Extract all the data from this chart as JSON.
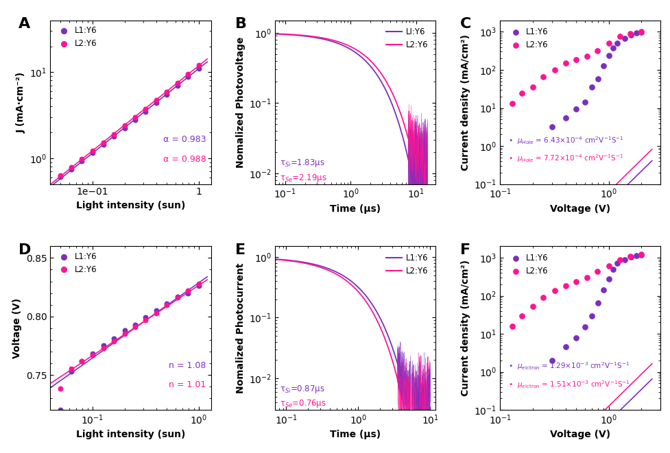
{
  "color_L1": "#7B2FBE",
  "color_L2": "#FF1493",
  "A": {
    "xlabel": "Light intensity (sun)",
    "ylabel": "J (mA·cm⁻²)",
    "alpha_L1": 0.983,
    "alpha_L2": 0.988,
    "x_L1": [
      0.05,
      0.063,
      0.079,
      0.1,
      0.126,
      0.158,
      0.2,
      0.251,
      0.316,
      0.398,
      0.501,
      0.631,
      0.794,
      1.0
    ],
    "y_L1": [
      0.605,
      0.748,
      0.93,
      1.15,
      1.43,
      1.79,
      2.23,
      2.79,
      3.49,
      4.38,
      5.5,
      6.95,
      8.78,
      11.1
    ],
    "x_L2": [
      0.05,
      0.063,
      0.079,
      0.1,
      0.126,
      0.158,
      0.2,
      0.251,
      0.316,
      0.398,
      0.501,
      0.631,
      0.794,
      1.0
    ],
    "y_L2": [
      0.632,
      0.791,
      0.985,
      1.23,
      1.53,
      1.91,
      2.39,
      3.0,
      3.76,
      4.73,
      5.96,
      7.52,
      9.5,
      12.0
    ],
    "xlim": [
      0.04,
      1.3
    ],
    "ylim": [
      0.5,
      40
    ]
  },
  "B": {
    "xlabel": "Time (μs)",
    "ylabel": "Nomalized Photovoltage",
    "tau_L1": 1.83,
    "tau_L2": 2.19,
    "xlim": [
      0.07,
      20
    ],
    "ylim": [
      0.007,
      1.5
    ]
  },
  "C": {
    "xlabel": "Voltage (V)",
    "ylabel": "Current density (mA/cm²)",
    "x_L1": [
      0.3,
      0.4,
      0.5,
      0.6,
      0.7,
      0.8,
      0.9,
      1.0,
      1.1,
      1.2,
      1.4,
      1.6,
      1.8,
      2.0
    ],
    "y_L1": [
      3.2,
      5.5,
      9.5,
      14.0,
      35.0,
      58.0,
      130.0,
      240.0,
      380.0,
      500.0,
      680.0,
      820.0,
      920.0,
      970.0
    ],
    "x_L2": [
      0.13,
      0.16,
      0.2,
      0.25,
      0.32,
      0.4,
      0.5,
      0.63,
      0.79,
      1.0,
      1.26,
      1.58,
      2.0
    ],
    "y_L2": [
      13.0,
      24.0,
      36.0,
      65.0,
      100.0,
      150.0,
      185.0,
      225.0,
      320.0,
      510.0,
      760.0,
      910.0,
      1010.0
    ],
    "slope_L1": 2.8,
    "intercept_L1": -1.5,
    "slope_L2": 2.8,
    "intercept_L2": -1.2,
    "xlim": [
      0.1,
      3.0
    ],
    "ylim": [
      0.1,
      2000.0
    ]
  },
  "D": {
    "xlabel": "Light intensity (sun)",
    "ylabel": "Voltage (V)",
    "n_L1": 1.08,
    "n_L2": 1.01,
    "x_L1": [
      0.05,
      0.063,
      0.079,
      0.1,
      0.126,
      0.158,
      0.2,
      0.251,
      0.316,
      0.398,
      0.501,
      0.631,
      0.794,
      1.0
    ],
    "y_L1": [
      0.72,
      0.753,
      0.762,
      0.768,
      0.775,
      0.781,
      0.788,
      0.793,
      0.799,
      0.805,
      0.811,
      0.817,
      0.82,
      0.826
    ],
    "x_L2": [
      0.05,
      0.063,
      0.079,
      0.1,
      0.126,
      0.158,
      0.2,
      0.251,
      0.316,
      0.398,
      0.501,
      0.631,
      0.794,
      1.0
    ],
    "y_L2": [
      0.738,
      0.755,
      0.762,
      0.767,
      0.773,
      0.779,
      0.785,
      0.791,
      0.797,
      0.803,
      0.81,
      0.816,
      0.822,
      0.828
    ],
    "xlim": [
      0.04,
      1.3
    ],
    "ylim": [
      0.72,
      0.86
    ]
  },
  "E": {
    "xlabel": "Time (μs)",
    "ylabel": "Nomalized Photocurrent",
    "tau_L1": 0.87,
    "tau_L2": 0.76,
    "xlim": [
      0.07,
      12
    ],
    "ylim": [
      0.003,
      1.5
    ]
  },
  "F": {
    "xlabel": "Voltage (V)",
    "ylabel": "Current density (mA/cm²)",
    "x_L1": [
      0.3,
      0.4,
      0.5,
      0.6,
      0.7,
      0.8,
      0.9,
      1.0,
      1.1,
      1.2,
      1.4,
      1.6,
      1.8,
      2.0
    ],
    "y_L1": [
      2.0,
      4.5,
      8.0,
      15.0,
      30.0,
      65.0,
      140.0,
      280.0,
      500.0,
      720.0,
      900.0,
      1050.0,
      1150.0,
      1200.0
    ],
    "x_L2": [
      0.13,
      0.16,
      0.2,
      0.25,
      0.32,
      0.4,
      0.5,
      0.63,
      0.79,
      1.0,
      1.26,
      1.58,
      2.0
    ],
    "y_L2": [
      16.0,
      30.0,
      52.0,
      90.0,
      135.0,
      185.0,
      235.0,
      305.0,
      430.0,
      620.0,
      870.0,
      1080.0,
      1220.0
    ],
    "slope_L1": 2.8,
    "intercept_L1": -1.3,
    "slope_L2": 2.8,
    "intercept_L2": -0.9,
    "xlim": [
      0.1,
      3.0
    ],
    "ylim": [
      0.1,
      2000.0
    ]
  }
}
